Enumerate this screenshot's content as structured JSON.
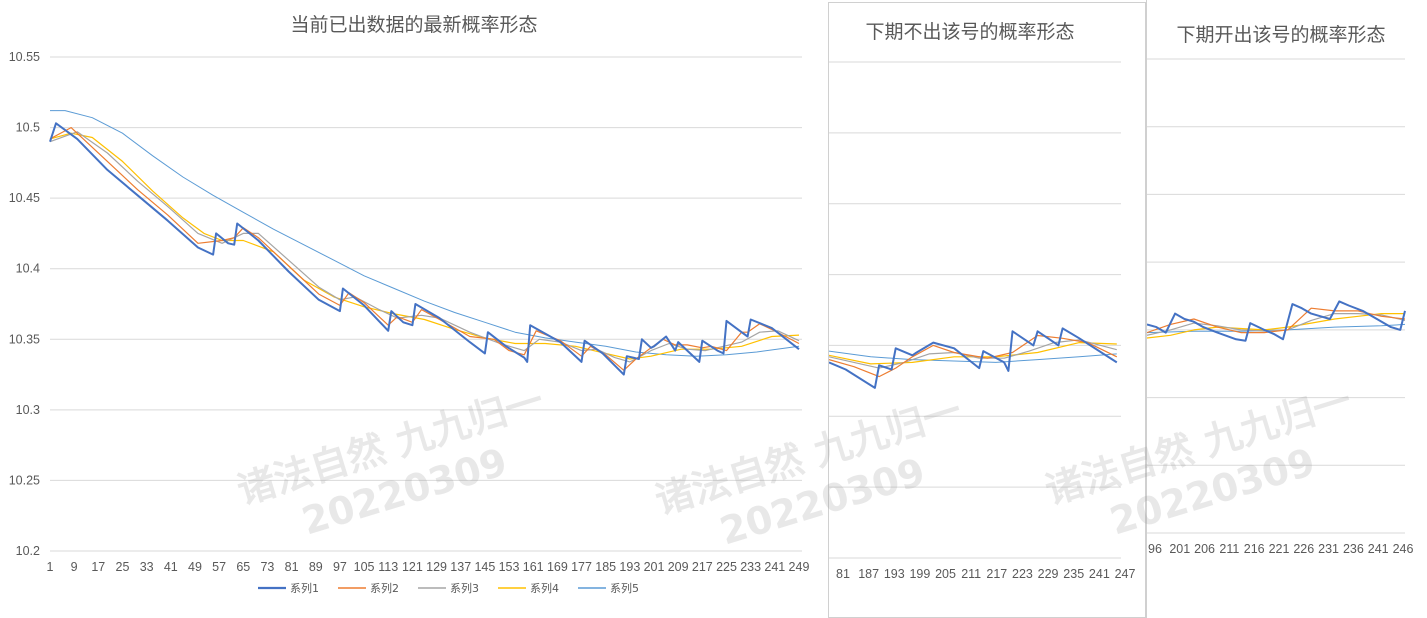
{
  "watermark": {
    "line1": "诸法自然 九九归一",
    "line2": "20220309"
  },
  "colors": {
    "s1": "#4472C4",
    "s2": "#ED7D31",
    "s3": "#A5A5A5",
    "s4": "#FFC000",
    "s5": "#5B9BD5",
    "grid": "#d9d9d9"
  },
  "chart_data": [
    {
      "type": "line",
      "title": "当前已出数据的最新概率形态",
      "ylim": [
        10.2,
        10.55
      ],
      "yticks": [
        "10.55",
        "10.5",
        "10.45",
        "10.4",
        "10.35",
        "10.3",
        "10.25",
        "10.2"
      ],
      "xrange": [
        1,
        250
      ],
      "xticks": [
        "1",
        "9",
        "17",
        "25",
        "33",
        "41",
        "49",
        "57",
        "65",
        "73",
        "81",
        "89",
        "97",
        "105",
        "113",
        "121",
        "129",
        "137",
        "145",
        "153",
        "161",
        "169",
        "177",
        "185",
        "193",
        "201",
        "209",
        "217",
        "225",
        "233",
        "241",
        "249"
      ],
      "legend": [
        "系列1",
        "系列2",
        "系列3",
        "系列4",
        "系列5"
      ],
      "series": [
        {
          "name": "系列1",
          "x": [
            1,
            3,
            10,
            20,
            30,
            40,
            50,
            55,
            56,
            60,
            62,
            63,
            70,
            80,
            90,
            97,
            98,
            105,
            113,
            114,
            118,
            121,
            122,
            130,
            140,
            145,
            146,
            152,
            158,
            159,
            160,
            170,
            177,
            178,
            184,
            191,
            192,
            196,
            197,
            200,
            201,
            205,
            208,
            209,
            216,
            217,
            222,
            224,
            225,
            230,
            232,
            233,
            240,
            249
          ],
          "y": [
            10.49,
            10.503,
            10.492,
            10.47,
            10.452,
            10.434,
            10.415,
            10.41,
            10.425,
            10.418,
            10.417,
            10.432,
            10.42,
            10.398,
            10.378,
            10.37,
            10.386,
            10.374,
            10.356,
            10.37,
            10.362,
            10.36,
            10.375,
            10.365,
            10.348,
            10.34,
            10.355,
            10.345,
            10.337,
            10.334,
            10.36,
            10.348,
            10.334,
            10.349,
            10.34,
            10.325,
            10.338,
            10.336,
            10.35,
            10.344,
            10.345,
            10.352,
            10.342,
            10.348,
            10.334,
            10.349,
            10.342,
            10.34,
            10.363,
            10.355,
            10.352,
            10.364,
            10.358,
            10.343
          ]
        },
        {
          "name": "系列2",
          "x": [
            1,
            8,
            20,
            30,
            40,
            50,
            58,
            62,
            65,
            70,
            80,
            90,
            97,
            100,
            105,
            113,
            116,
            121,
            124,
            130,
            140,
            148,
            153,
            158,
            162,
            170,
            177,
            180,
            185,
            191,
            195,
            200,
            204,
            208,
            212,
            217,
            220,
            225,
            230,
            232,
            236,
            240,
            249
          ],
          "y": [
            10.492,
            10.5,
            10.476,
            10.456,
            10.438,
            10.418,
            10.42,
            10.422,
            10.429,
            10.422,
            10.402,
            10.382,
            10.374,
            10.383,
            10.376,
            10.36,
            10.366,
            10.362,
            10.371,
            10.364,
            10.352,
            10.35,
            10.342,
            10.339,
            10.356,
            10.349,
            10.338,
            10.345,
            10.339,
            10.328,
            10.336,
            10.344,
            10.35,
            10.346,
            10.346,
            10.344,
            10.345,
            10.342,
            10.355,
            10.355,
            10.361,
            10.357,
            10.347
          ]
        },
        {
          "name": "系列3",
          "x": [
            1,
            10,
            20,
            30,
            40,
            50,
            58,
            65,
            70,
            80,
            90,
            97,
            102,
            110,
            116,
            124,
            130,
            140,
            150,
            158,
            163,
            170,
            177,
            182,
            188,
            193,
            200,
            206,
            212,
            218,
            224,
            230,
            236,
            242,
            249
          ],
          "y": [
            10.49,
            10.497,
            10.482,
            10.462,
            10.444,
            10.425,
            10.418,
            10.425,
            10.425,
            10.406,
            10.387,
            10.378,
            10.38,
            10.371,
            10.365,
            10.367,
            10.365,
            10.355,
            10.347,
            10.342,
            10.35,
            10.348,
            10.342,
            10.343,
            10.337,
            10.334,
            10.342,
            10.347,
            10.343,
            10.342,
            10.345,
            10.348,
            10.355,
            10.356,
            10.349
          ]
        },
        {
          "name": "系列4",
          "x": [
            1,
            8,
            15,
            25,
            35,
            45,
            52,
            58,
            65,
            75,
            85,
            95,
            105,
            115,
            125,
            135,
            145,
            155,
            165,
            175,
            185,
            193,
            200,
            210,
            220,
            230,
            240,
            249
          ],
          "y": [
            10.492,
            10.496,
            10.493,
            10.476,
            10.455,
            10.436,
            10.425,
            10.42,
            10.42,
            10.412,
            10.392,
            10.38,
            10.373,
            10.368,
            10.364,
            10.357,
            10.351,
            10.347,
            10.347,
            10.345,
            10.34,
            10.336,
            10.338,
            10.343,
            10.343,
            10.345,
            10.352,
            10.353
          ]
        },
        {
          "name": "系列5",
          "x": [
            1,
            6,
            15,
            25,
            35,
            45,
            55,
            65,
            75,
            85,
            95,
            105,
            115,
            125,
            135,
            145,
            155,
            165,
            175,
            185,
            195,
            205,
            215,
            225,
            235,
            249
          ],
          "y": [
            10.512,
            10.512,
            10.507,
            10.496,
            10.48,
            10.465,
            10.452,
            10.44,
            10.428,
            10.417,
            10.406,
            10.395,
            10.386,
            10.377,
            10.369,
            10.362,
            10.355,
            10.351,
            10.348,
            10.345,
            10.341,
            10.339,
            10.338,
            10.339,
            10.341,
            10.345
          ]
        }
      ]
    },
    {
      "type": "line",
      "title": "下期不出该号的概率形态",
      "ylim": [
        10.2,
        10.55
      ],
      "xrange": [
        180,
        250
      ],
      "xticks": [
        "81",
        "187",
        "193",
        "199",
        "205",
        "211",
        "217",
        "223",
        "229",
        "235",
        "241",
        "247"
      ],
      "series": [
        {
          "name": "系列1",
          "x": [
            180,
            184,
            191,
            192,
            195,
            196,
            200,
            201,
            205,
            210,
            216,
            217,
            222,
            223,
            224,
            228,
            229,
            230,
            234,
            235,
            236,
            240,
            249
          ],
          "y": [
            10.338,
            10.333,
            10.32,
            10.336,
            10.333,
            10.348,
            10.343,
            10.345,
            10.352,
            10.348,
            10.334,
            10.346,
            10.338,
            10.332,
            10.36,
            10.352,
            10.35,
            10.36,
            10.352,
            10.35,
            10.362,
            10.355,
            10.338
          ]
        },
        {
          "name": "系列2",
          "x": [
            180,
            186,
            192,
            196,
            200,
            205,
            210,
            218,
            224,
            230,
            236,
            242,
            249
          ],
          "y": [
            10.34,
            10.335,
            10.328,
            10.334,
            10.342,
            10.35,
            10.345,
            10.341,
            10.345,
            10.357,
            10.355,
            10.352,
            10.342
          ]
        },
        {
          "name": "系列3",
          "x": [
            180,
            186,
            192,
            198,
            204,
            210,
            216,
            222,
            228,
            234,
            240,
            249
          ],
          "y": [
            10.342,
            10.338,
            10.334,
            10.338,
            10.344,
            10.345,
            10.341,
            10.341,
            10.346,
            10.352,
            10.354,
            10.347
          ]
        },
        {
          "name": "系列4",
          "x": [
            180,
            190,
            200,
            210,
            220,
            230,
            240,
            249
          ],
          "y": [
            10.343,
            10.337,
            10.338,
            10.342,
            10.342,
            10.345,
            10.352,
            10.351
          ]
        },
        {
          "name": "系列5",
          "x": [
            180,
            190,
            200,
            210,
            220,
            230,
            240,
            249
          ],
          "y": [
            10.346,
            10.342,
            10.34,
            10.339,
            10.338,
            10.34,
            10.342,
            10.344
          ]
        }
      ]
    },
    {
      "type": "line",
      "title": "下期开出该号的概率形态",
      "ylim": [
        10.2,
        10.55
      ],
      "xrange": [
        195,
        250
      ],
      "xticks": [
        "96",
        "201",
        "206",
        "211",
        "216",
        "221",
        "226",
        "231",
        "236",
        "241",
        "246"
      ],
      "series": [
        {
          "name": "系列1",
          "x": [
            195,
            197,
            199,
            201,
            203,
            205,
            207,
            210,
            214,
            216,
            217,
            220,
            222,
            224,
            226,
            228,
            230,
            232,
            234,
            236,
            238,
            241,
            244,
            247,
            249,
            250
          ],
          "y": [
            10.354,
            10.352,
            10.348,
            10.362,
            10.358,
            10.356,
            10.352,
            10.348,
            10.343,
            10.342,
            10.355,
            10.35,
            10.347,
            10.343,
            10.369,
            10.366,
            10.362,
            10.36,
            10.358,
            10.371,
            10.368,
            10.364,
            10.358,
            10.352,
            10.35,
            10.364
          ]
        },
        {
          "name": "系列2",
          "x": [
            195,
            200,
            205,
            210,
            215,
            220,
            225,
            230,
            235,
            240,
            245,
            250
          ],
          "y": [
            10.348,
            10.354,
            10.358,
            10.352,
            10.348,
            10.348,
            10.35,
            10.366,
            10.364,
            10.364,
            10.36,
            10.358
          ]
        },
        {
          "name": "系列3",
          "x": [
            195,
            200,
            205,
            210,
            215,
            220,
            225,
            230,
            235,
            240,
            245,
            250
          ],
          "y": [
            10.346,
            10.35,
            10.355,
            10.353,
            10.35,
            10.349,
            10.35,
            10.357,
            10.362,
            10.362,
            10.361,
            10.357
          ]
        },
        {
          "name": "系列4",
          "x": [
            195,
            200,
            205,
            210,
            215,
            220,
            225,
            230,
            235,
            240,
            245,
            250
          ],
          "y": [
            10.344,
            10.346,
            10.35,
            10.352,
            10.351,
            10.35,
            10.352,
            10.355,
            10.358,
            10.36,
            10.362,
            10.362
          ]
        },
        {
          "name": "系列5",
          "x": [
            195,
            205,
            215,
            225,
            235,
            245,
            250
          ],
          "y": [
            10.348,
            10.349,
            10.349,
            10.35,
            10.352,
            10.353,
            10.354
          ]
        }
      ]
    }
  ]
}
